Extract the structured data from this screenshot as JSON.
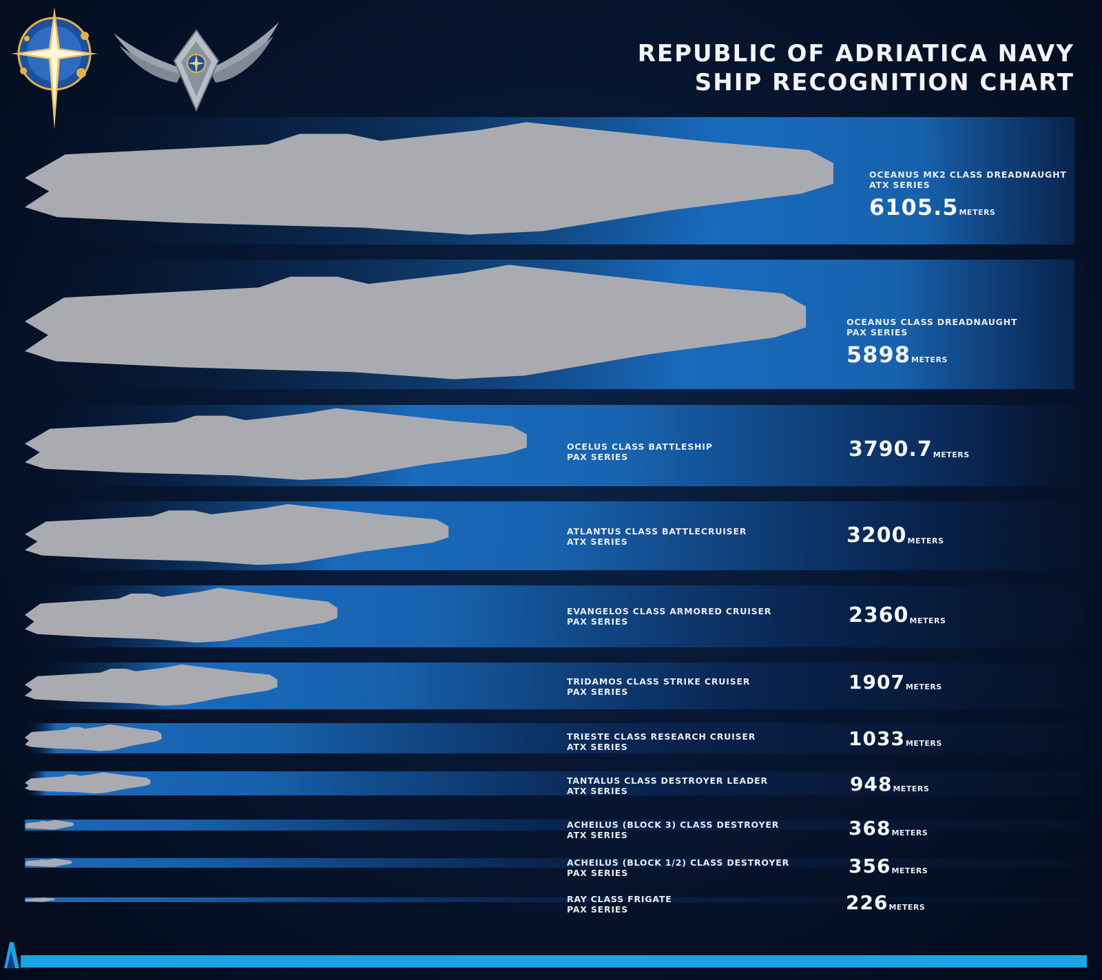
{
  "header": {
    "title_line_1": "REPUBLIC OF ADRIATICA NAVY",
    "title_line_2": "SHIP RECOGNITION CHART"
  },
  "colors": {
    "ship_silhouette": "#a9abb1",
    "band_bright": "#1a6fc4",
    "band_dark": "#071631",
    "accent_stripe": "#1aa3e6",
    "emblem_gold": "#e2b24a",
    "emblem_blue": "#1e4f9c"
  },
  "chart_data": {
    "type": "bar",
    "title": "REPUBLIC OF ADRIATICA NAVY SHIP RECOGNITION CHART",
    "unit": "METERS",
    "categories": [
      "OCEANUS MK2 CLASS DREADNAUGHT",
      "OCEANUS CLASS DREADNAUGHT",
      "OCELUS CLASS BATTLESHIP",
      "ATLANTUS CLASS BATTLECRUISER",
      "EVANGELOS CLASS ARMORED CRUISER",
      "TRIDAMOS CLASS STRIKE CRUISER",
      "TRIESTE CLASS RESEARCH CRUISER",
      "TANTALUS CLASS DESTROYER  LEADER",
      "ACHEILUS (BLOCK 3) CLASS DESTROYER",
      "ACHEILUS (BLOCK 1/2) CLASS DESTROYER",
      "RAY CLASS FRIGATE"
    ],
    "series_labels": [
      "ATX SERIES",
      "PAX SERIES",
      "PAX SERIES",
      "ATX SERIES",
      "PAX SERIES",
      "PAX SERIES",
      "ATX SERIES",
      "ATX SERIES",
      "ATX SERIES",
      "PAX SERIES",
      "PAX SERIES"
    ],
    "values": [
      6105.5,
      5898,
      3790.7,
      3200,
      2360,
      1907,
      1033,
      948,
      368,
      356,
      226
    ],
    "value_labels": [
      "6105.5",
      "5898",
      "3790.7",
      "3200",
      "2360",
      "1907",
      "1033",
      "948",
      "368",
      "356",
      "226"
    ]
  }
}
